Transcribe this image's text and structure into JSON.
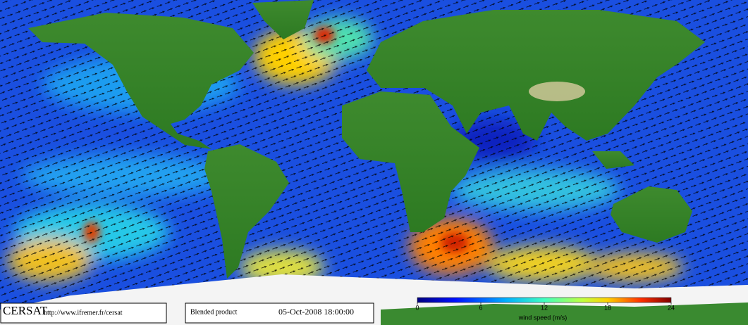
{
  "footer": {
    "logo": "CERSAT",
    "url": "http://www.ifremer.fr/cersat",
    "product": "Blended product",
    "date": "05-Oct-2008 18:00:00"
  },
  "colorbar": {
    "label": "wind speed (m/s)",
    "lim": [
      0,
      24
    ],
    "ticks": [
      0,
      6,
      12,
      18,
      24
    ]
  }
}
